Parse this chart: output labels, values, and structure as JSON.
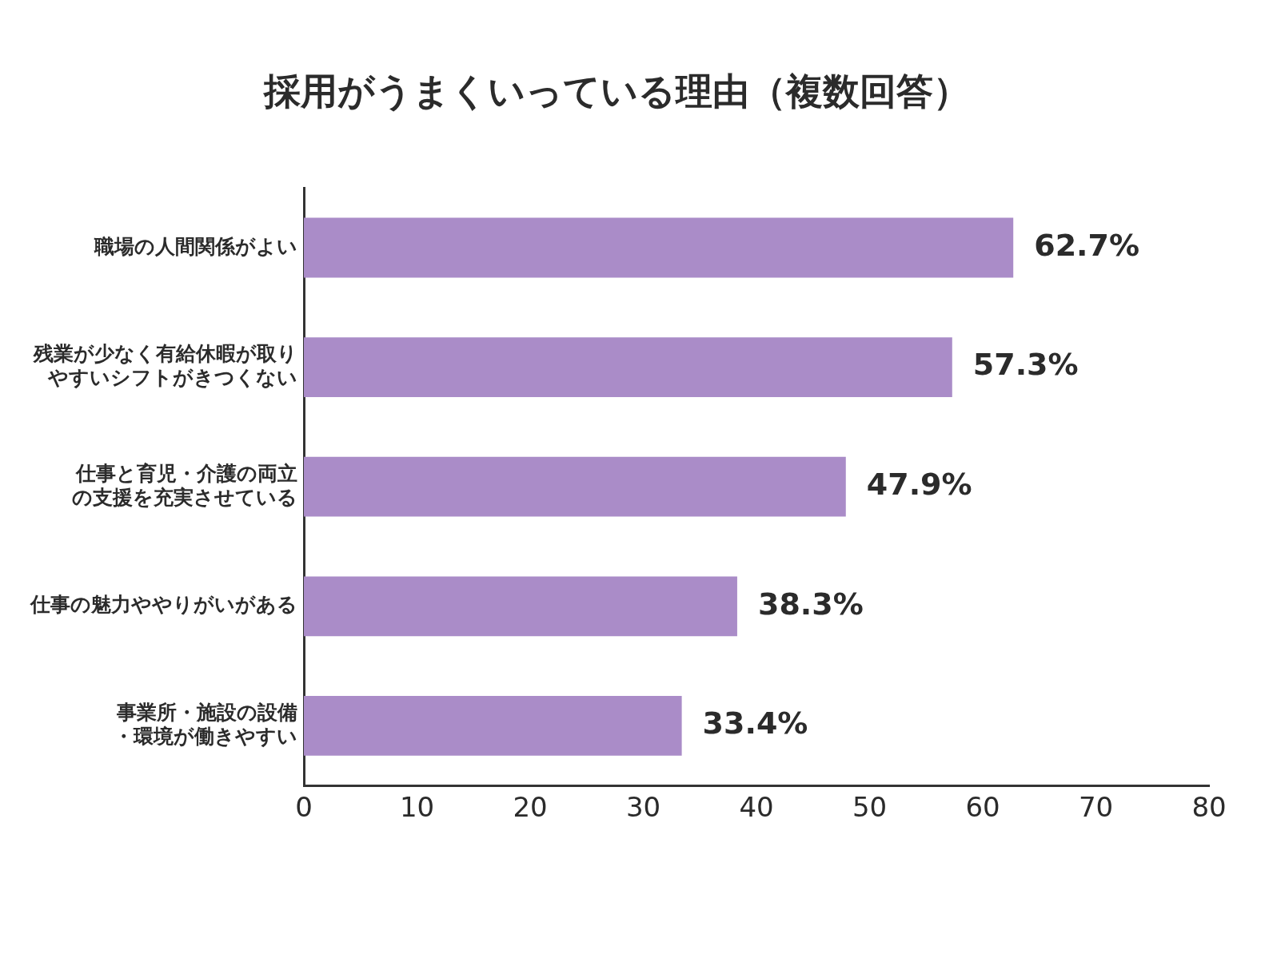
{
  "chart_data": {
    "type": "bar",
    "orientation": "horizontal",
    "title": "採用がうまくいっている理由（複数回答）",
    "categories": [
      "職場の人間関係がよい",
      "残業が少なく有給休暇が取りやすいシフトがきつくない",
      "仕事と育児・介護の両立の支援を充実させている",
      "仕事の魅力ややりがいがある",
      "事業所・施設の設備・環境が働きやすい"
    ],
    "values": [
      62.7,
      57.3,
      47.9,
      38.3,
      33.4
    ],
    "value_labels": [
      "62.7%",
      "57.3%",
      "47.9%",
      "38.3%",
      "33.4%"
    ],
    "color": "#aa8cc8",
    "xlim": [
      0,
      80
    ],
    "xticks": [
      0,
      10,
      20,
      30,
      40,
      50,
      60,
      70,
      80
    ],
    "grid": false,
    "legend": false
  }
}
